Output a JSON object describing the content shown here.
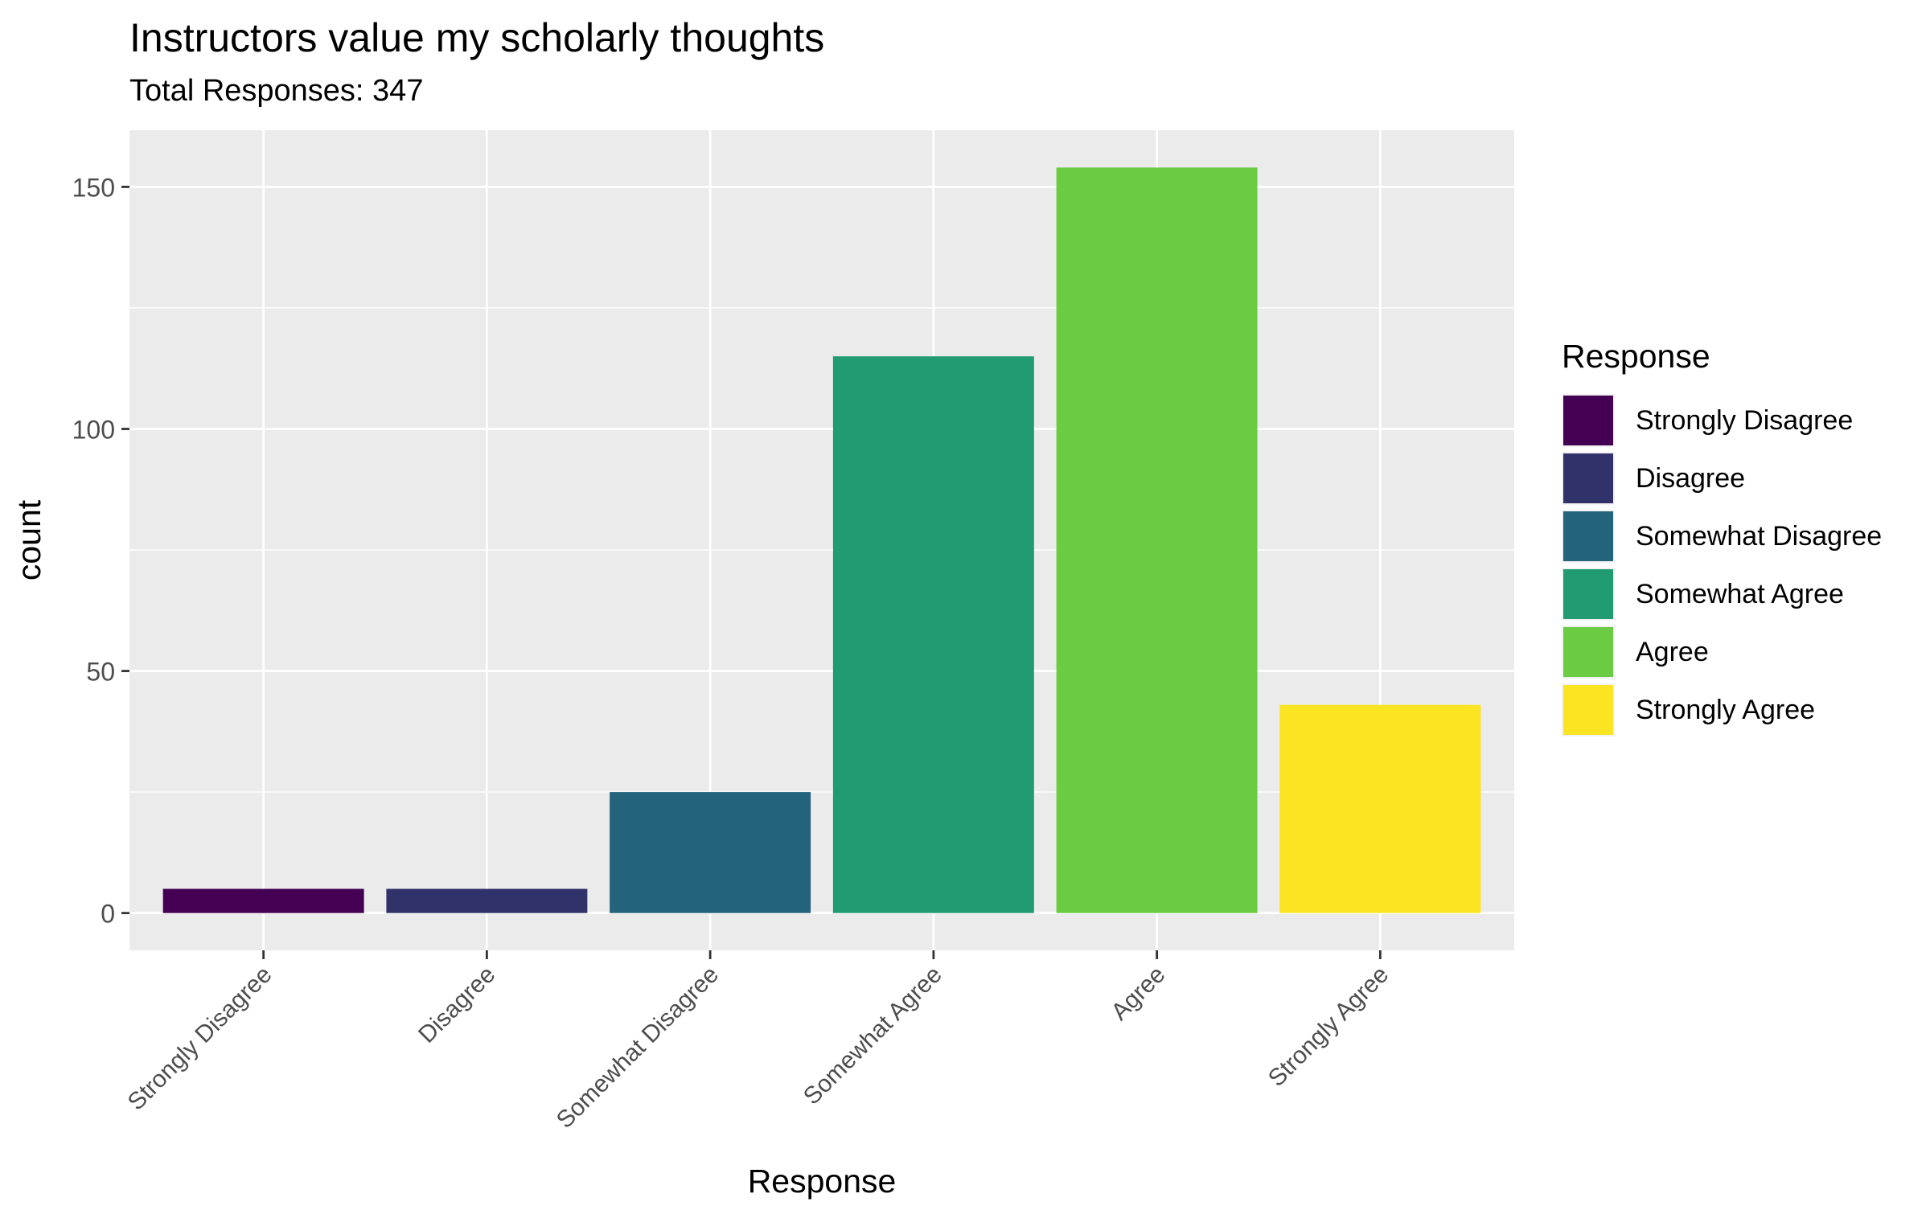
{
  "chart_data": {
    "type": "bar",
    "title": "Instructors value my scholarly thoughts",
    "subtitle": "Total Responses: 347",
    "xlabel": "Response",
    "ylabel": "count",
    "categories": [
      "Strongly Disagree",
      "Disagree",
      "Somewhat Disagree",
      "Somewhat Agree",
      "Agree",
      "Strongly Agree"
    ],
    "values": [
      5,
      5,
      25,
      115,
      154,
      43
    ],
    "colors": [
      "#440154",
      "#31326A",
      "#23647A",
      "#219B71",
      "#6BCB43",
      "#FBE422"
    ],
    "ylim": [
      -7.7,
      161.7
    ],
    "yticks": [
      0,
      50,
      100,
      150
    ],
    "grid": true,
    "legend": {
      "title": "Response",
      "placement": "right"
    }
  }
}
